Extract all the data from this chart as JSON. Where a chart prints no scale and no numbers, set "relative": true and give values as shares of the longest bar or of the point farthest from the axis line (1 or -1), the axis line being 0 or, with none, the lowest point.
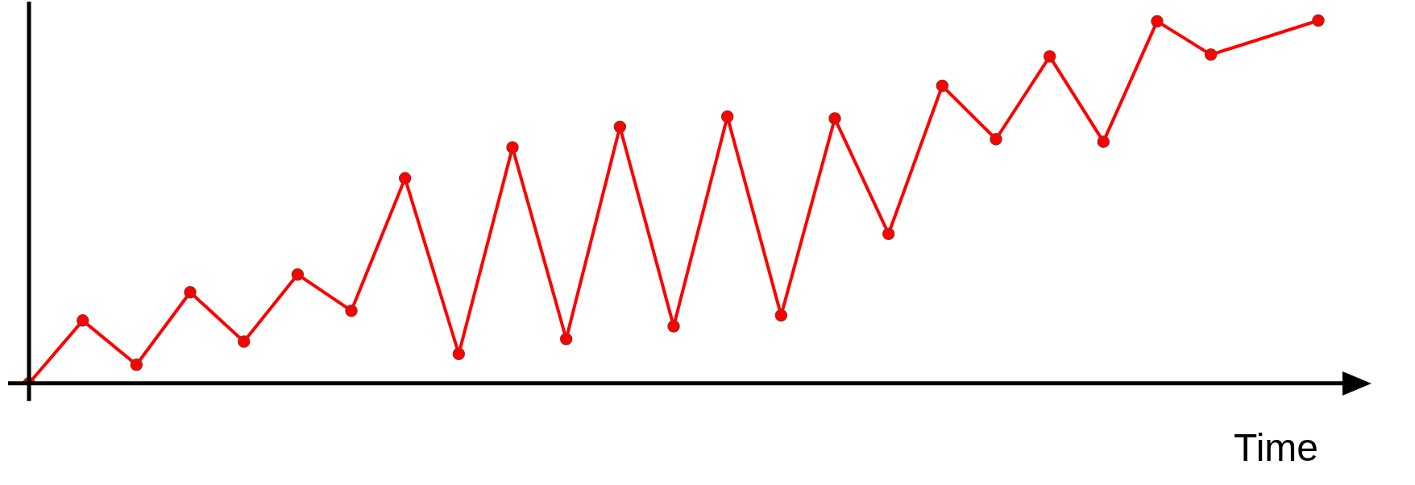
{
  "chart_data": {
    "type": "line",
    "xlabel": "Time",
    "relative": true,
    "marker": "circle",
    "line_style": "solid",
    "grid": false,
    "legend": false,
    "categories": [
      null,
      null,
      null,
      null,
      null,
      null,
      null,
      null,
      null,
      null,
      null,
      null,
      null,
      null,
      null,
      null,
      null,
      null,
      null,
      null,
      null,
      null,
      null,
      null,
      null
    ],
    "series": [
      {
        "color": "#ff0000",
        "values": [
          0,
          0.173,
          0.051,
          0.251,
          0.115,
          0.3,
          0.2,
          0.565,
          0.081,
          0.65,
          0.122,
          0.707,
          0.157,
          0.735,
          0.187,
          0.73,
          0.412,
          0.82,
          0.673,
          0.901,
          0.666,
          0.998,
          0.906,
          null,
          1
        ]
      }
    ]
  }
}
